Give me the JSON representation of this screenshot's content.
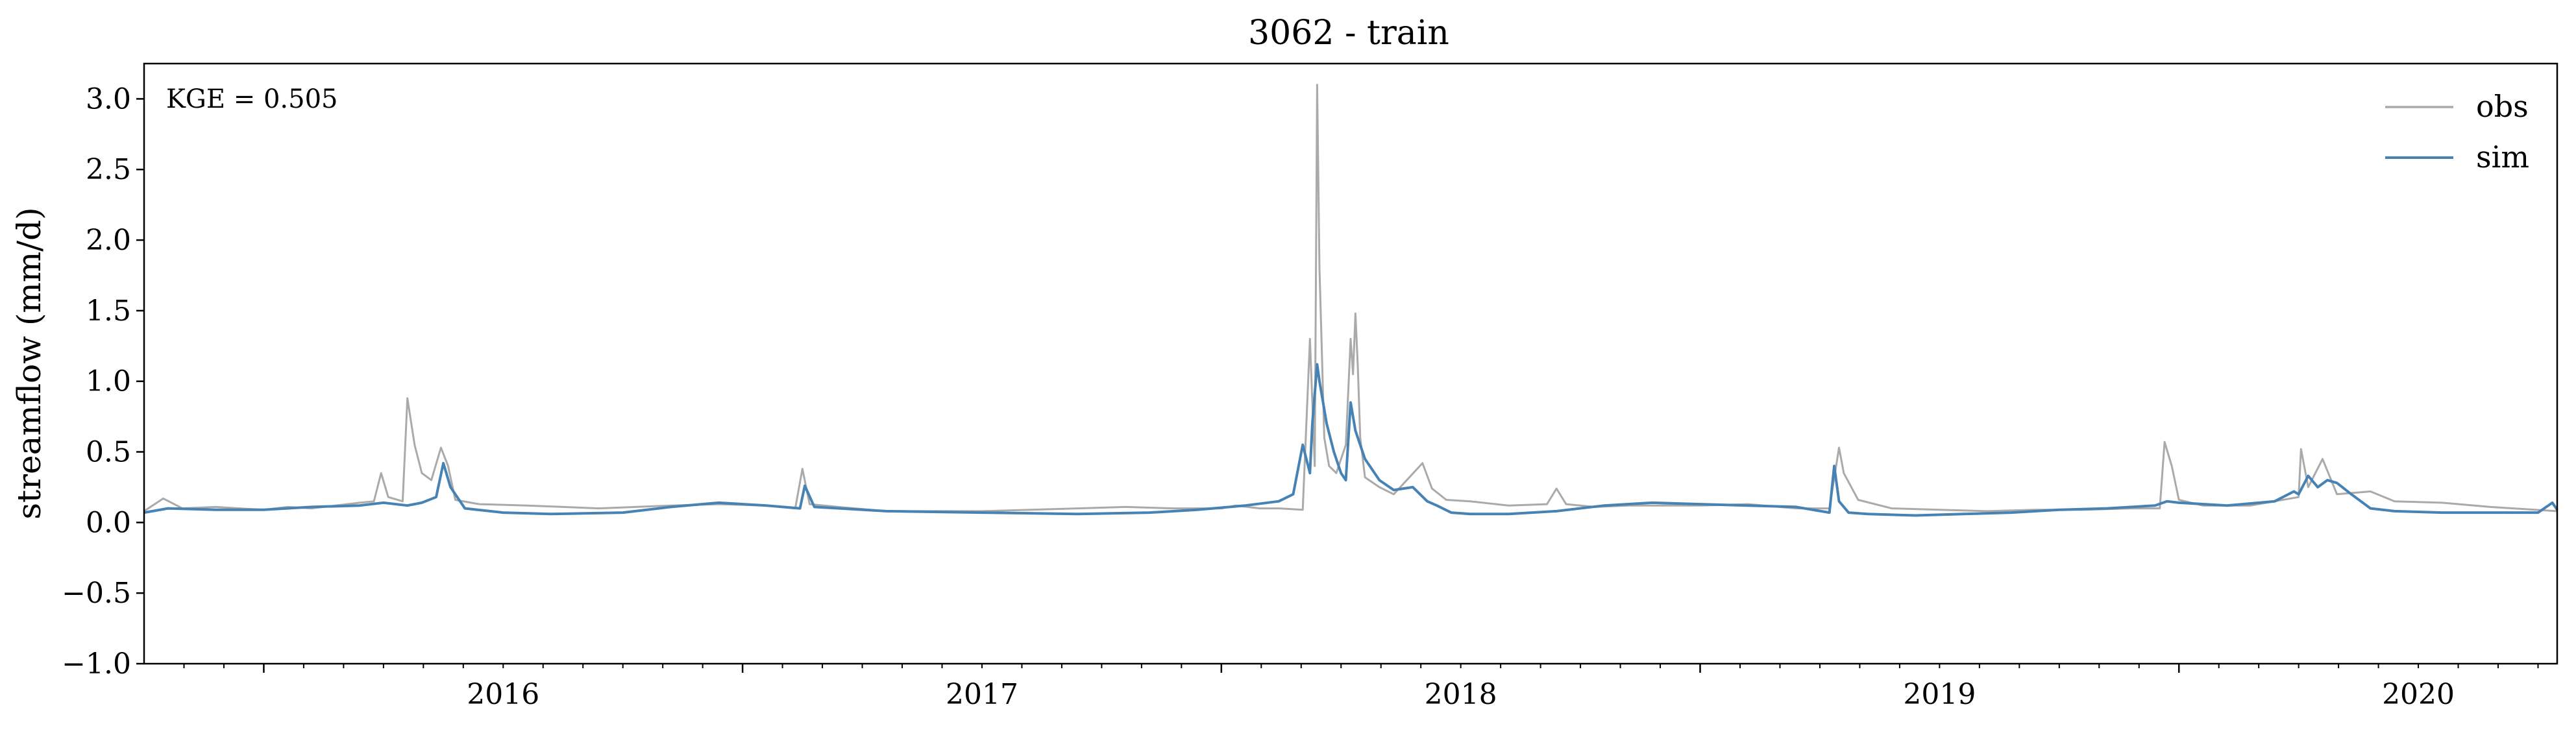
{
  "chart_data": {
    "type": "line",
    "title": "3062 - train",
    "xlabel": "",
    "ylabel": "streamflow (mm/d)",
    "annotation": "KGE = 0.505",
    "xlim": [
      2015.75,
      2020.79
    ],
    "ylim": [
      -1.0,
      3.25
    ],
    "yticks": [
      -1.0,
      -0.5,
      0.0,
      0.5,
      1.0,
      1.5,
      2.0,
      2.5,
      3.0
    ],
    "ytick_labels": [
      "−1.0",
      "−0.5",
      "0.0",
      "0.5",
      "1.0",
      "1.5",
      "2.0",
      "2.5",
      "3.0"
    ],
    "xticks": [
      2016,
      2017,
      2018,
      2019,
      2020
    ],
    "xtick_labels": [
      "2016",
      "2017",
      "2018",
      "2019",
      "2020"
    ],
    "legend_position": "top-right",
    "colors": {
      "obs": "#aaaaaa",
      "sim": "#4682b4"
    },
    "series": [
      {
        "name": "obs",
        "x": [
          2015.75,
          2015.79,
          2015.83,
          2015.9,
          2016.0,
          2016.05,
          2016.1,
          2016.15,
          2016.2,
          2016.23,
          2016.245,
          2016.26,
          2016.29,
          2016.3,
          2016.315,
          2016.33,
          2016.35,
          2016.37,
          2016.385,
          2016.4,
          2016.45,
          2016.55,
          2016.7,
          2016.85,
          2016.95,
          2017.05,
          2017.11,
          2017.125,
          2017.14,
          2017.2,
          2017.3,
          2017.5,
          2017.7,
          2017.8,
          2017.9,
          2018.0,
          2018.03,
          2018.08,
          2018.12,
          2018.17,
          2018.185,
          2018.195,
          2018.2,
          2018.205,
          2018.215,
          2018.225,
          2018.24,
          2018.26,
          2018.27,
          2018.275,
          2018.28,
          2018.285,
          2018.29,
          2018.3,
          2018.33,
          2018.36,
          2018.42,
          2018.44,
          2018.47,
          2018.52,
          2018.6,
          2018.68,
          2018.7,
          2018.72,
          2018.78,
          2018.85,
          2019.0,
          2019.1,
          2019.2,
          2019.27,
          2019.29,
          2019.3,
          2019.33,
          2019.4,
          2019.5,
          2019.6,
          2019.7,
          2019.8,
          2019.9,
          2019.96,
          2019.97,
          2019.985,
          2020.0,
          2020.05,
          2020.15,
          2020.2,
          2020.25,
          2020.255,
          2020.27,
          2020.3,
          2020.33,
          2020.4,
          2020.45,
          2020.55,
          2020.65,
          2020.79
        ],
        "values": [
          0.08,
          0.17,
          0.1,
          0.11,
          0.09,
          0.11,
          0.1,
          0.12,
          0.14,
          0.15,
          0.35,
          0.18,
          0.15,
          0.88,
          0.55,
          0.35,
          0.3,
          0.53,
          0.4,
          0.16,
          0.13,
          0.12,
          0.1,
          0.12,
          0.13,
          0.12,
          0.1,
          0.38,
          0.13,
          0.11,
          0.08,
          0.08,
          0.1,
          0.11,
          0.1,
          0.1,
          0.12,
          0.1,
          0.1,
          0.09,
          1.3,
          0.4,
          3.1,
          1.8,
          0.6,
          0.4,
          0.35,
          0.55,
          1.3,
          1.05,
          1.48,
          1.1,
          0.6,
          0.32,
          0.25,
          0.2,
          0.42,
          0.24,
          0.16,
          0.15,
          0.12,
          0.13,
          0.24,
          0.13,
          0.11,
          0.12,
          0.12,
          0.13,
          0.1,
          0.1,
          0.53,
          0.35,
          0.16,
          0.1,
          0.09,
          0.08,
          0.09,
          0.09,
          0.1,
          0.1,
          0.57,
          0.4,
          0.16,
          0.12,
          0.12,
          0.15,
          0.18,
          0.52,
          0.25,
          0.45,
          0.2,
          0.22,
          0.15,
          0.14,
          0.11,
          0.08
        ]
      },
      {
        "name": "sim",
        "x": [
          2015.75,
          2015.8,
          2015.9,
          2016.0,
          2016.1,
          2016.2,
          2016.25,
          2016.3,
          2016.33,
          2016.36,
          2016.375,
          2016.39,
          2016.42,
          2016.5,
          2016.6,
          2016.75,
          2016.85,
          2016.95,
          2017.05,
          2017.12,
          2017.13,
          2017.15,
          2017.3,
          2017.5,
          2017.7,
          2017.85,
          2017.95,
          2018.05,
          2018.12,
          2018.15,
          2018.17,
          2018.185,
          2018.19,
          2018.2,
          2018.205,
          2018.22,
          2018.235,
          2018.25,
          2018.26,
          2018.27,
          2018.28,
          2018.3,
          2018.33,
          2018.36,
          2018.4,
          2018.43,
          2018.45,
          2018.48,
          2018.52,
          2018.6,
          2018.7,
          2018.8,
          2018.9,
          2019.0,
          2019.1,
          2019.2,
          2019.27,
          2019.28,
          2019.29,
          2019.31,
          2019.35,
          2019.45,
          2019.55,
          2019.65,
          2019.75,
          2019.85,
          2019.95,
          2019.975,
          2020.0,
          2020.1,
          2020.2,
          2020.24,
          2020.25,
          2020.27,
          2020.29,
          2020.31,
          2020.33,
          2020.36,
          2020.4,
          2020.45,
          2020.55,
          2020.65,
          2020.75,
          2020.78,
          2020.79
        ],
        "values": [
          0.07,
          0.1,
          0.09,
          0.09,
          0.11,
          0.12,
          0.14,
          0.12,
          0.14,
          0.18,
          0.42,
          0.25,
          0.1,
          0.07,
          0.06,
          0.07,
          0.11,
          0.14,
          0.12,
          0.1,
          0.26,
          0.11,
          0.08,
          0.07,
          0.06,
          0.07,
          0.09,
          0.12,
          0.15,
          0.2,
          0.55,
          0.35,
          0.7,
          1.12,
          1.0,
          0.7,
          0.5,
          0.35,
          0.3,
          0.85,
          0.65,
          0.45,
          0.3,
          0.23,
          0.25,
          0.15,
          0.12,
          0.07,
          0.06,
          0.06,
          0.08,
          0.12,
          0.14,
          0.13,
          0.12,
          0.11,
          0.07,
          0.4,
          0.15,
          0.07,
          0.06,
          0.05,
          0.06,
          0.07,
          0.09,
          0.1,
          0.12,
          0.15,
          0.14,
          0.12,
          0.15,
          0.22,
          0.2,
          0.33,
          0.25,
          0.3,
          0.28,
          0.2,
          0.1,
          0.08,
          0.07,
          0.07,
          0.07,
          0.14,
          0.09
        ]
      }
    ]
  }
}
